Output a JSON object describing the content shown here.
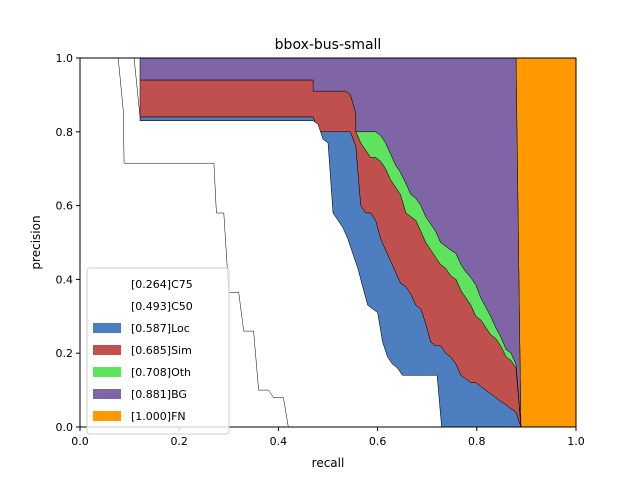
{
  "chart_data": {
    "type": "area",
    "title": "bbox-bus-small",
    "xlabel": "recall",
    "ylabel": "precision",
    "xlim": [
      0,
      1
    ],
    "ylim": [
      0,
      1
    ],
    "xticks": [
      "0.0",
      "0.2",
      "0.4",
      "0.6",
      "0.8",
      "1.0"
    ],
    "yticks": [
      "0.0",
      "0.2",
      "0.4",
      "0.6",
      "0.8",
      "1.0"
    ],
    "grid": false,
    "legend_position": "bottom-left",
    "series": [
      {
        "name": "[1.000]FN",
        "color": "#ff9900",
        "points": [
          [
            0.879,
            1.0
          ],
          [
            1.0,
            1.0
          ],
          [
            1.0,
            0.0
          ],
          [
            0.889,
            0.0
          ]
        ]
      },
      {
        "name": "[0.881]BG",
        "color": "#7f64a6",
        "points": [
          [
            0.109,
            1.0
          ],
          [
            0.879,
            1.0
          ],
          [
            0.889,
            0.0
          ],
          [
            0.879,
            0.17
          ],
          [
            0.869,
            0.2
          ],
          [
            0.859,
            0.21
          ],
          [
            0.848,
            0.245
          ],
          [
            0.838,
            0.27
          ],
          [
            0.828,
            0.3
          ],
          [
            0.818,
            0.325
          ],
          [
            0.808,
            0.35
          ],
          [
            0.798,
            0.385
          ],
          [
            0.788,
            0.405
          ],
          [
            0.778,
            0.42
          ],
          [
            0.768,
            0.44
          ],
          [
            0.758,
            0.47
          ],
          [
            0.747,
            0.48
          ],
          [
            0.737,
            0.49
          ],
          [
            0.727,
            0.5
          ],
          [
            0.717,
            0.53
          ],
          [
            0.707,
            0.55
          ],
          [
            0.697,
            0.57
          ],
          [
            0.687,
            0.6
          ],
          [
            0.677,
            0.62
          ],
          [
            0.667,
            0.63
          ],
          [
            0.657,
            0.66
          ],
          [
            0.646,
            0.69
          ],
          [
            0.636,
            0.71
          ],
          [
            0.626,
            0.74
          ],
          [
            0.616,
            0.77
          ],
          [
            0.606,
            0.79
          ],
          [
            0.596,
            0.8
          ],
          [
            0.586,
            0.8
          ],
          [
            0.576,
            0.8
          ],
          [
            0.566,
            0.8
          ],
          [
            0.556,
            0.8
          ],
          [
            0.556,
            0.85
          ],
          [
            0.545,
            0.9
          ],
          [
            0.535,
            0.91
          ],
          [
            0.48,
            0.91
          ],
          [
            0.47,
            0.91
          ],
          [
            0.47,
            0.94
          ],
          [
            0.121,
            0.94
          ],
          [
            0.121,
            1.0
          ]
        ]
      },
      {
        "name": "[0.708]Oth",
        "color": "#5ee35e",
        "points": [
          [
            0.556,
            0.8
          ],
          [
            0.566,
            0.8
          ],
          [
            0.576,
            0.8
          ],
          [
            0.586,
            0.8
          ],
          [
            0.596,
            0.8
          ],
          [
            0.606,
            0.79
          ],
          [
            0.616,
            0.77
          ],
          [
            0.626,
            0.74
          ],
          [
            0.636,
            0.71
          ],
          [
            0.646,
            0.69
          ],
          [
            0.657,
            0.66
          ],
          [
            0.667,
            0.63
          ],
          [
            0.677,
            0.62
          ],
          [
            0.687,
            0.6
          ],
          [
            0.697,
            0.57
          ],
          [
            0.707,
            0.55
          ],
          [
            0.717,
            0.53
          ],
          [
            0.727,
            0.5
          ],
          [
            0.737,
            0.49
          ],
          [
            0.747,
            0.48
          ],
          [
            0.758,
            0.47
          ],
          [
            0.768,
            0.44
          ],
          [
            0.778,
            0.42
          ],
          [
            0.788,
            0.405
          ],
          [
            0.798,
            0.385
          ],
          [
            0.808,
            0.35
          ],
          [
            0.818,
            0.325
          ],
          [
            0.828,
            0.3
          ],
          [
            0.838,
            0.27
          ],
          [
            0.848,
            0.245
          ],
          [
            0.859,
            0.21
          ],
          [
            0.869,
            0.2
          ],
          [
            0.879,
            0.17
          ],
          [
            0.889,
            0.0
          ],
          [
            0.879,
            0.16
          ],
          [
            0.869,
            0.18
          ],
          [
            0.859,
            0.19
          ],
          [
            0.848,
            0.22
          ],
          [
            0.838,
            0.24
          ],
          [
            0.828,
            0.25
          ],
          [
            0.818,
            0.27
          ],
          [
            0.808,
            0.29
          ],
          [
            0.798,
            0.3
          ],
          [
            0.788,
            0.33
          ],
          [
            0.778,
            0.35
          ],
          [
            0.768,
            0.37
          ],
          [
            0.758,
            0.4
          ],
          [
            0.747,
            0.41
          ],
          [
            0.737,
            0.43
          ],
          [
            0.727,
            0.44
          ],
          [
            0.717,
            0.46
          ],
          [
            0.707,
            0.48
          ],
          [
            0.697,
            0.5
          ],
          [
            0.687,
            0.53
          ],
          [
            0.677,
            0.56
          ],
          [
            0.667,
            0.57
          ],
          [
            0.657,
            0.58
          ],
          [
            0.646,
            0.63
          ],
          [
            0.636,
            0.65
          ],
          [
            0.626,
            0.67
          ],
          [
            0.616,
            0.7
          ],
          [
            0.606,
            0.72
          ],
          [
            0.596,
            0.73
          ],
          [
            0.586,
            0.73
          ],
          [
            0.576,
            0.75
          ],
          [
            0.566,
            0.77
          ],
          [
            0.556,
            0.8
          ]
        ]
      },
      {
        "name": "[0.685]Sim",
        "color": "#c0504d",
        "points": [
          [
            0.121,
            0.94
          ],
          [
            0.47,
            0.94
          ],
          [
            0.47,
            0.91
          ],
          [
            0.535,
            0.91
          ],
          [
            0.545,
            0.9
          ],
          [
            0.556,
            0.85
          ],
          [
            0.556,
            0.8
          ],
          [
            0.566,
            0.77
          ],
          [
            0.576,
            0.75
          ],
          [
            0.586,
            0.73
          ],
          [
            0.596,
            0.73
          ],
          [
            0.606,
            0.72
          ],
          [
            0.616,
            0.7
          ],
          [
            0.626,
            0.67
          ],
          [
            0.636,
            0.65
          ],
          [
            0.646,
            0.63
          ],
          [
            0.657,
            0.58
          ],
          [
            0.667,
            0.57
          ],
          [
            0.677,
            0.56
          ],
          [
            0.687,
            0.53
          ],
          [
            0.697,
            0.5
          ],
          [
            0.707,
            0.48
          ],
          [
            0.717,
            0.46
          ],
          [
            0.727,
            0.44
          ],
          [
            0.737,
            0.43
          ],
          [
            0.747,
            0.41
          ],
          [
            0.758,
            0.4
          ],
          [
            0.768,
            0.37
          ],
          [
            0.778,
            0.35
          ],
          [
            0.788,
            0.33
          ],
          [
            0.798,
            0.3
          ],
          [
            0.808,
            0.29
          ],
          [
            0.818,
            0.27
          ],
          [
            0.828,
            0.25
          ],
          [
            0.838,
            0.24
          ],
          [
            0.848,
            0.22
          ],
          [
            0.859,
            0.19
          ],
          [
            0.869,
            0.18
          ],
          [
            0.879,
            0.16
          ],
          [
            0.889,
            0.0
          ],
          [
            0.879,
            0.04
          ],
          [
            0.869,
            0.05
          ],
          [
            0.859,
            0.06
          ],
          [
            0.848,
            0.07
          ],
          [
            0.838,
            0.08
          ],
          [
            0.828,
            0.09
          ],
          [
            0.818,
            0.1
          ],
          [
            0.808,
            0.11
          ],
          [
            0.798,
            0.12
          ],
          [
            0.788,
            0.12
          ],
          [
            0.778,
            0.13
          ],
          [
            0.768,
            0.14
          ],
          [
            0.758,
            0.17
          ],
          [
            0.747,
            0.19
          ],
          [
            0.737,
            0.2
          ],
          [
            0.727,
            0.22
          ],
          [
            0.717,
            0.22
          ],
          [
            0.707,
            0.23
          ],
          [
            0.697,
            0.28
          ],
          [
            0.687,
            0.32
          ],
          [
            0.677,
            0.33
          ],
          [
            0.667,
            0.36
          ],
          [
            0.657,
            0.38
          ],
          [
            0.646,
            0.39
          ],
          [
            0.636,
            0.42
          ],
          [
            0.626,
            0.45
          ],
          [
            0.616,
            0.48
          ],
          [
            0.606,
            0.51
          ],
          [
            0.596,
            0.56
          ],
          [
            0.586,
            0.58
          ],
          [
            0.576,
            0.58
          ],
          [
            0.566,
            0.6
          ],
          [
            0.556,
            0.76
          ],
          [
            0.545,
            0.8
          ],
          [
            0.535,
            0.8
          ],
          [
            0.48,
            0.8
          ],
          [
            0.47,
            0.84
          ],
          [
            0.121,
            0.84
          ],
          [
            0.121,
            0.94
          ]
        ]
      },
      {
        "name": "[0.587]Loc",
        "color": "#4d7ebf",
        "points": [
          [
            0.121,
            0.84
          ],
          [
            0.47,
            0.84
          ],
          [
            0.48,
            0.8
          ],
          [
            0.535,
            0.8
          ],
          [
            0.545,
            0.8
          ],
          [
            0.556,
            0.76
          ],
          [
            0.566,
            0.6
          ],
          [
            0.576,
            0.58
          ],
          [
            0.586,
            0.58
          ],
          [
            0.596,
            0.56
          ],
          [
            0.606,
            0.51
          ],
          [
            0.616,
            0.48
          ],
          [
            0.626,
            0.45
          ],
          [
            0.636,
            0.42
          ],
          [
            0.646,
            0.39
          ],
          [
            0.657,
            0.38
          ],
          [
            0.667,
            0.36
          ],
          [
            0.677,
            0.33
          ],
          [
            0.687,
            0.32
          ],
          [
            0.697,
            0.28
          ],
          [
            0.707,
            0.23
          ],
          [
            0.717,
            0.22
          ],
          [
            0.727,
            0.22
          ],
          [
            0.737,
            0.2
          ],
          [
            0.747,
            0.19
          ],
          [
            0.758,
            0.17
          ],
          [
            0.768,
            0.14
          ],
          [
            0.778,
            0.13
          ],
          [
            0.788,
            0.12
          ],
          [
            0.798,
            0.12
          ],
          [
            0.808,
            0.11
          ],
          [
            0.818,
            0.1
          ],
          [
            0.828,
            0.09
          ],
          [
            0.838,
            0.08
          ],
          [
            0.848,
            0.07
          ],
          [
            0.859,
            0.06
          ],
          [
            0.869,
            0.05
          ],
          [
            0.879,
            0.04
          ],
          [
            0.889,
            0.0
          ],
          [
            0.729,
            0.0
          ],
          [
            0.72,
            0.14
          ],
          [
            0.7,
            0.14
          ],
          [
            0.65,
            0.14
          ],
          [
            0.64,
            0.16
          ],
          [
            0.63,
            0.17
          ],
          [
            0.62,
            0.19
          ],
          [
            0.61,
            0.23
          ],
          [
            0.6,
            0.31
          ],
          [
            0.59,
            0.32
          ],
          [
            0.58,
            0.33
          ],
          [
            0.57,
            0.38
          ],
          [
            0.56,
            0.43
          ],
          [
            0.55,
            0.47
          ],
          [
            0.54,
            0.51
          ],
          [
            0.53,
            0.54
          ],
          [
            0.51,
            0.58
          ],
          [
            0.5,
            0.77
          ],
          [
            0.49,
            0.78
          ],
          [
            0.48,
            0.82
          ],
          [
            0.47,
            0.83
          ],
          [
            0.121,
            0.83
          ],
          [
            0.121,
            0.84
          ]
        ]
      },
      {
        "name": "[0.493]C50",
        "color": "#ffffff",
        "points": [
          [
            0.0,
            1.0
          ],
          [
            0.109,
            1.0
          ],
          [
            0.121,
            0.84
          ],
          [
            0.121,
            0.83
          ],
          [
            0.47,
            0.83
          ],
          [
            0.48,
            0.82
          ],
          [
            0.49,
            0.78
          ],
          [
            0.5,
            0.77
          ],
          [
            0.51,
            0.58
          ],
          [
            0.53,
            0.54
          ],
          [
            0.54,
            0.51
          ],
          [
            0.55,
            0.47
          ],
          [
            0.56,
            0.43
          ],
          [
            0.57,
            0.38
          ],
          [
            0.58,
            0.33
          ],
          [
            0.59,
            0.32
          ],
          [
            0.6,
            0.31
          ],
          [
            0.61,
            0.23
          ],
          [
            0.62,
            0.19
          ],
          [
            0.63,
            0.17
          ],
          [
            0.64,
            0.16
          ],
          [
            0.65,
            0.14
          ],
          [
            0.7,
            0.14
          ],
          [
            0.72,
            0.14
          ],
          [
            0.729,
            0.0
          ],
          [
            0.0,
            0.0
          ]
        ]
      },
      {
        "name": "[0.264]C75",
        "color": "#ffffff",
        "points": [
          [
            0.0,
            1.0
          ],
          [
            0.077,
            1.0
          ],
          [
            0.087,
            0.86
          ],
          [
            0.089,
            0.715
          ],
          [
            0.27,
            0.715
          ],
          [
            0.275,
            0.58
          ],
          [
            0.29,
            0.58
          ],
          [
            0.3,
            0.365
          ],
          [
            0.32,
            0.365
          ],
          [
            0.33,
            0.26
          ],
          [
            0.35,
            0.26
          ],
          [
            0.36,
            0.1
          ],
          [
            0.38,
            0.1
          ],
          [
            0.39,
            0.08
          ],
          [
            0.41,
            0.08
          ],
          [
            0.42,
            0.0
          ],
          [
            0.0,
            0.0
          ]
        ]
      }
    ]
  }
}
